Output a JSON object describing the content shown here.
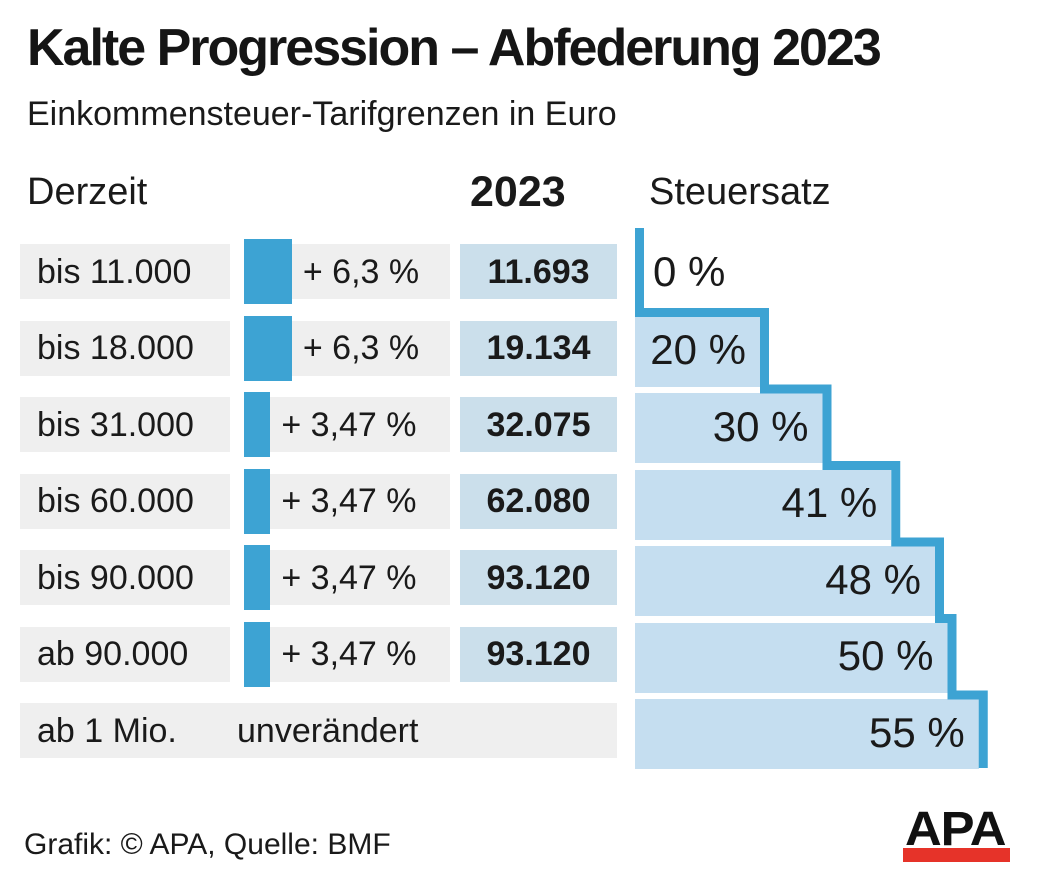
{
  "title": "Kalte Progression – Abfederung 2023",
  "subtitle": "Einkommensteuer-Tarifgrenzen in Euro",
  "columns": {
    "current": "Derzeit",
    "year": "2023",
    "rate": "Steuersatz"
  },
  "footer": {
    "credit": "Grafik: © APA, Quelle: BMF"
  },
  "logo": {
    "text": "APA"
  },
  "colors": {
    "accent_blue": "#3da3d3",
    "step_fill": "#c5def0",
    "value_fill": "#cbdfeb",
    "row_gray": "#efefef",
    "logo_red": "#e63329",
    "ink": "#1a1a1a"
  },
  "chart_data": {
    "type": "table",
    "title": "Kalte Progression – Abfederung 2023",
    "subtitle": "Einkommensteuer-Tarifgrenzen in Euro",
    "column_headers": [
      "Derzeit",
      "2023",
      "Steuersatz"
    ],
    "rows": [
      {
        "current": "bis 11.000",
        "increase_label": "+ 6,3 %",
        "increase_pct": 6.3,
        "limit_2023": "11.693",
        "tax_rate_label": "0 %",
        "tax_rate_pct": 0
      },
      {
        "current": "bis 18.000",
        "increase_label": "+ 6,3 %",
        "increase_pct": 6.3,
        "limit_2023": "19.134",
        "tax_rate_label": "20 %",
        "tax_rate_pct": 20
      },
      {
        "current": "bis 31.000",
        "increase_label": "+ 3,47 %",
        "increase_pct": 3.47,
        "limit_2023": "32.075",
        "tax_rate_label": "30 %",
        "tax_rate_pct": 30
      },
      {
        "current": "bis 60.000",
        "increase_label": "+ 3,47 %",
        "increase_pct": 3.47,
        "limit_2023": "62.080",
        "tax_rate_label": "41 %",
        "tax_rate_pct": 41
      },
      {
        "current": "bis 90.000",
        "increase_label": "+ 3,47 %",
        "increase_pct": 3.47,
        "limit_2023": "93.120",
        "tax_rate_label": "48 %",
        "tax_rate_pct": 48
      },
      {
        "current": "ab 90.000",
        "increase_label": "+ 3,47 %",
        "increase_pct": 3.47,
        "limit_2023": "93.120",
        "tax_rate_label": "50 %",
        "tax_rate_pct": 50
      },
      {
        "current": "ab 1 Mio.",
        "increase_label": "unverändert",
        "increase_pct": null,
        "limit_2023": null,
        "tax_rate_label": "55 %",
        "tax_rate_pct": 55
      }
    ]
  }
}
